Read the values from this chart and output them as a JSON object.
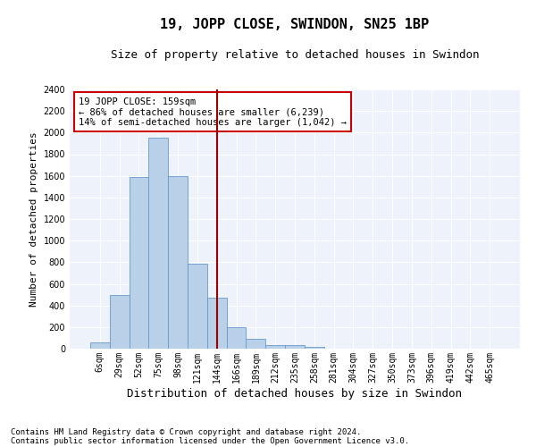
{
  "title": "19, JOPP CLOSE, SWINDON, SN25 1BP",
  "subtitle": "Size of property relative to detached houses in Swindon",
  "xlabel": "Distribution of detached houses by size in Swindon",
  "ylabel": "Number of detached properties",
  "bar_values": [
    60,
    500,
    1590,
    1950,
    1600,
    790,
    470,
    200,
    90,
    35,
    30,
    20,
    0,
    0,
    0,
    0,
    0,
    0,
    0,
    0,
    0
  ],
  "categories": [
    "6sqm",
    "29sqm",
    "52sqm",
    "75sqm",
    "98sqm",
    "121sqm",
    "144sqm",
    "166sqm",
    "189sqm",
    "212sqm",
    "235sqm",
    "258sqm",
    "281sqm",
    "304sqm",
    "327sqm",
    "350sqm",
    "373sqm",
    "396sqm",
    "419sqm",
    "442sqm",
    "465sqm"
  ],
  "bar_color": "#b8d0e8",
  "bar_edge_color": "#6699cc",
  "background_color": "#eef2fb",
  "grid_color": "#ffffff",
  "vline_x": 6.0,
  "vline_color": "#990000",
  "annotation_text": "19 JOPP CLOSE: 159sqm\n← 86% of detached houses are smaller (6,239)\n14% of semi-detached houses are larger (1,042) →",
  "annotation_box_color": "#cc0000",
  "ylim": [
    0,
    2400
  ],
  "yticks": [
    0,
    200,
    400,
    600,
    800,
    1000,
    1200,
    1400,
    1600,
    1800,
    2000,
    2200,
    2400
  ],
  "footer_line1": "Contains HM Land Registry data © Crown copyright and database right 2024.",
  "footer_line2": "Contains public sector information licensed under the Open Government Licence v3.0.",
  "title_fontsize": 11,
  "subtitle_fontsize": 9,
  "xlabel_fontsize": 9,
  "ylabel_fontsize": 8,
  "tick_fontsize": 7,
  "annotation_fontsize": 7.5,
  "footer_fontsize": 6.5,
  "fig_width": 6.0,
  "fig_height": 5.0,
  "dpi": 100
}
